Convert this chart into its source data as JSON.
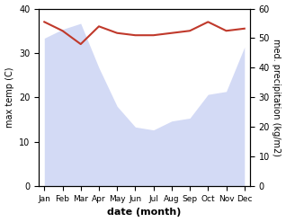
{
  "months": [
    "Jan",
    "Feb",
    "Mar",
    "Apr",
    "May",
    "Jun",
    "Jul",
    "Aug",
    "Sep",
    "Oct",
    "Nov",
    "Dec"
  ],
  "temp": [
    37,
    35,
    32,
    36,
    34.5,
    34,
    34,
    34.5,
    35,
    37,
    35,
    35.5
  ],
  "precip": [
    50,
    53,
    55,
    40,
    27,
    20,
    19,
    22,
    23,
    31,
    32,
    47
  ],
  "temp_color": "#c0392b",
  "precip_color": "#b0bcee",
  "precip_alpha": 0.55,
  "temp_ylim": [
    0,
    40
  ],
  "precip_ylim": [
    0,
    60
  ],
  "xlabel": "date (month)",
  "ylabel_left": "max temp (C)",
  "ylabel_right": "med. precipitation (kg/m2)",
  "bg_color": "#ffffff"
}
